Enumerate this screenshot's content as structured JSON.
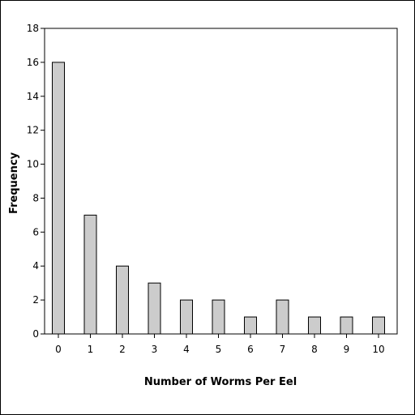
{
  "chart_data": {
    "type": "bar",
    "title": "",
    "xlabel": "Number of Worms Per Eel",
    "ylabel": "Frequency",
    "categories": [
      "0",
      "1",
      "2",
      "3",
      "4",
      "5",
      "6",
      "7",
      "8",
      "9",
      "10"
    ],
    "values": [
      16,
      7,
      4,
      3,
      2,
      2,
      1,
      2,
      1,
      1,
      1
    ],
    "ylim": [
      0,
      18
    ],
    "yticks": [
      0,
      2,
      4,
      6,
      8,
      10,
      12,
      14,
      16,
      18
    ],
    "grid": false,
    "legend": "none",
    "colors": {
      "bar_fill": "#cccccc",
      "bar_stroke": "#000000"
    }
  }
}
